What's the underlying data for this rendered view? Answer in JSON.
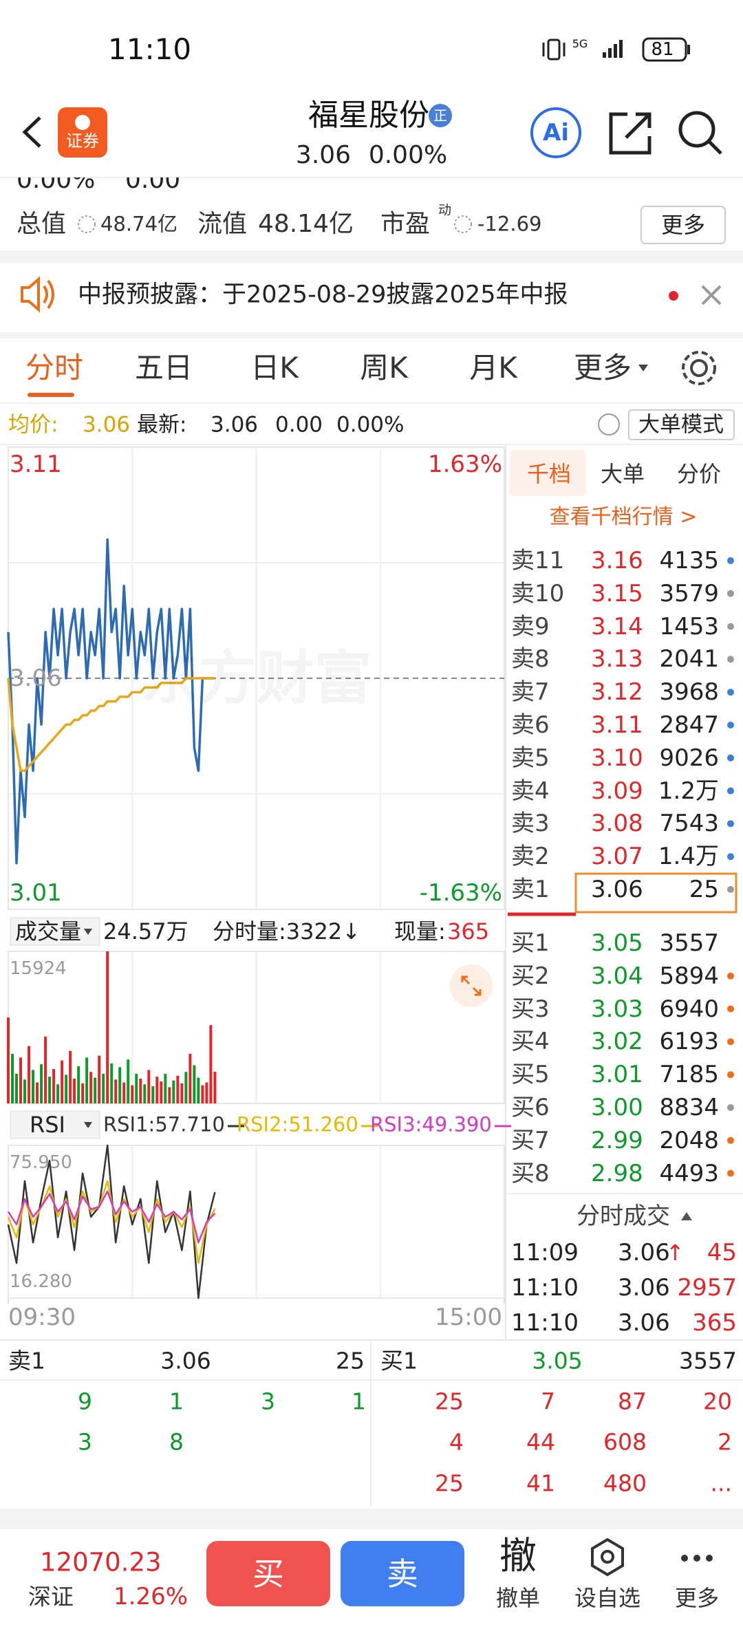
{
  "status_bar": {
    "time": "11:10",
    "network": "5G",
    "battery": "81"
  },
  "header": {
    "logo": "证券",
    "title": "福星股份",
    "badge": "正",
    "price": "3.06",
    "change": "0.00%",
    "ai": "Ai"
  },
  "quote": {
    "clipped": [
      "0.00%",
      "0.00"
    ],
    "total_value_label": "总值",
    "total_value": "48.74亿",
    "float_value_label": "流值",
    "float_value": "48.14亿",
    "pe_label": "市盈",
    "pe_sup": "动",
    "pe": "-12.69",
    "more": "更多"
  },
  "notice": "中报预披露：于2025-08-29披露2025年中报",
  "tabs": [
    "分时",
    "五日",
    "日K",
    "周K",
    "月K",
    "更多"
  ],
  "info": {
    "avg_label": "均价:",
    "avg": "3.06",
    "last_label": "最新:",
    "last": "3.06",
    "change": "0.00",
    "pct": "0.00%",
    "mode": "大单模式"
  },
  "chart_data": [
    {
      "type": "line",
      "watermark": "东方财富",
      "grid": true,
      "x": [
        0,
        2,
        4,
        6,
        8,
        10,
        12,
        14,
        16,
        18,
        20,
        22,
        24,
        26,
        28,
        30,
        32,
        34,
        36,
        38,
        40,
        42,
        44,
        46,
        48,
        50,
        52,
        54,
        56,
        58,
        60,
        62,
        64,
        66,
        68,
        70,
        72,
        74,
        76,
        78,
        80,
        82,
        84,
        86,
        88,
        90,
        92,
        94,
        96,
        98,
        100
      ],
      "series": [
        {
          "color": "#2d6cb4",
          "values": [
            3.07,
            3.05,
            3.02,
            3.04,
            3.03,
            3.05,
            3.04,
            3.06,
            3.05,
            3.07,
            3.06,
            3.075,
            3.065,
            3.075,
            3.06,
            3.07,
            3.075,
            3.065,
            3.075,
            3.06,
            3.07,
            3.065,
            3.075,
            3.06,
            3.09,
            3.07,
            3.075,
            3.06,
            3.08,
            3.065,
            3.075,
            3.06,
            3.07,
            3.065,
            3.075,
            3.06,
            3.07,
            3.075,
            3.06,
            3.075,
            3.06,
            3.065,
            3.075,
            3.06,
            3.075,
            3.045,
            3.04,
            3.06,
            3.06,
            3.06,
            3.06
          ]
        },
        {
          "color": "#e6a817",
          "values": [
            3.06,
            3.05,
            3.045,
            3.04,
            3.04,
            3.041,
            3.042,
            3.043,
            3.044,
            3.045,
            3.046,
            3.047,
            3.048,
            3.049,
            3.05,
            3.05,
            3.051,
            3.051,
            3.052,
            3.052,
            3.053,
            3.053,
            3.054,
            3.054,
            3.055,
            3.055,
            3.055,
            3.056,
            3.056,
            3.056,
            3.057,
            3.057,
            3.057,
            3.058,
            3.058,
            3.058,
            3.058,
            3.059,
            3.059,
            3.059,
            3.059,
            3.059,
            3.059,
            3.06,
            3.06,
            3.06,
            3.06,
            3.06,
            3.06,
            3.06,
            3.06
          ]
        }
      ],
      "xlim": [
        0,
        240
      ],
      "xticks": [
        {
          "value": 0,
          "label": "09:30"
        },
        {
          "value": 240,
          "label": "15:00"
        }
      ],
      "ylim": [
        3.01,
        3.11
      ],
      "yticks": [
        3.01,
        3.06,
        3.11
      ],
      "y2lim": [
        -1.63,
        1.63
      ],
      "y2ticks": [
        {
          "value": -1.63,
          "label": "-1.63%"
        },
        {
          "value": 1.63,
          "label": "1.63%"
        }
      ]
    },
    {
      "type": "bar",
      "title": "成交量",
      "total": "24.57万",
      "tick_volume": "分时量:3322↓",
      "current_label": "现量:",
      "current": "365",
      "up_color": "#e0262b",
      "down_color": "#0d9a2b",
      "x": [
        0,
        2,
        4,
        6,
        8,
        10,
        12,
        14,
        16,
        18,
        20,
        22,
        24,
        26,
        28,
        30,
        32,
        34,
        36,
        38,
        40,
        42,
        44,
        46,
        48,
        50,
        52,
        54,
        56,
        58,
        60,
        62,
        64,
        66,
        68,
        70,
        72,
        74,
        76,
        78,
        80,
        82,
        84,
        86,
        88,
        90,
        92,
        94,
        96,
        98,
        100
      ],
      "values": [
        9000,
        5200,
        3100,
        4800,
        2500,
        6000,
        3500,
        2200,
        4100,
        7000,
        2800,
        3600,
        2000,
        4500,
        3000,
        5500,
        2600,
        3900,
        2100,
        4800,
        3300,
        2700,
        5000,
        3100,
        15924,
        4200,
        2500,
        3800,
        2200,
        4600,
        1900,
        3100,
        2600,
        2000,
        3500,
        1800,
        2800,
        2300,
        3100,
        1700,
        2400,
        2900,
        2100,
        3300,
        5200,
        4000,
        2700,
        1900,
        2200,
        8200,
        3322
      ],
      "xlim": [
        0,
        240
      ],
      "ylim": [
        0,
        15924
      ],
      "yticks": [
        15924
      ]
    },
    {
      "type": "line",
      "title": "RSI",
      "x": [
        0,
        4,
        8,
        12,
        16,
        20,
        24,
        28,
        32,
        36,
        40,
        44,
        48,
        52,
        56,
        60,
        64,
        68,
        72,
        76,
        80,
        84,
        88,
        92,
        96,
        100
      ],
      "series": [
        {
          "name": "RSI1:57.710",
          "color": "#333333",
          "values": [
            45,
            30,
            62,
            38,
            55,
            70,
            40,
            58,
            35,
            65,
            48,
            52,
            75.95,
            38,
            60,
            45,
            55,
            30,
            62,
            42,
            50,
            35,
            58,
            16.28,
            45,
            57.71
          ]
        },
        {
          "name": "RSI2:51.260",
          "color": "#e6b800",
          "values": [
            48,
            40,
            55,
            45,
            52,
            60,
            48,
            55,
            44,
            58,
            50,
            52,
            62,
            46,
            55,
            48,
            52,
            42,
            55,
            46,
            50,
            44,
            52,
            30,
            45,
            51.26
          ]
        },
        {
          "name": "RSI3:49.390",
          "color": "#d13bc8",
          "values": [
            50,
            45,
            55,
            48,
            52,
            57,
            50,
            54,
            47,
            56,
            51,
            52,
            58,
            49,
            54,
            50,
            52,
            46,
            53,
            48,
            50,
            47,
            51,
            38,
            46,
            49.39
          ]
        }
      ],
      "xlim": [
        0,
        240
      ],
      "ylim": [
        16.28,
        75.95
      ],
      "yticks": [
        {
          "value": 16.28,
          "label": "16.280"
        },
        {
          "value": 75.95,
          "label": "75.950"
        }
      ]
    }
  ],
  "order_book": {
    "tabs": [
      "千档",
      "大单",
      "分价"
    ],
    "link": "查看千档行情 >",
    "asks": [
      {
        "label": "卖11",
        "price": "3.16",
        "volume": "4135",
        "dot": "#3d7fd9"
      },
      {
        "label": "卖10",
        "price": "3.15",
        "volume": "3579",
        "dot": "#9a9a9a"
      },
      {
        "label": "卖9",
        "price": "3.14",
        "volume": "1453",
        "dot": "#9a9a9a"
      },
      {
        "label": "卖8",
        "price": "3.13",
        "volume": "2041",
        "dot": "#9a9a9a"
      },
      {
        "label": "卖7",
        "price": "3.12",
        "volume": "3968",
        "dot": "#3d7fd9"
      },
      {
        "label": "卖6",
        "price": "3.11",
        "volume": "2847",
        "dot": "#3d7fd9"
      },
      {
        "label": "卖5",
        "price": "3.10",
        "volume": "9026",
        "dot": "#3d7fd9"
      },
      {
        "label": "卖4",
        "price": "3.09",
        "volume": "1.2万",
        "dot": "#3d7fd9"
      },
      {
        "label": "卖3",
        "price": "3.08",
        "volume": "7543",
        "dot": "#3d7fd9"
      },
      {
        "label": "卖2",
        "price": "3.07",
        "volume": "1.4万",
        "dot": "#3d7fd9"
      },
      {
        "label": "卖1",
        "price": "3.06",
        "volume": "25",
        "dot": "#9a9a9a"
      }
    ],
    "bids": [
      {
        "label": "买1",
        "price": "3.05",
        "volume": "3557"
      },
      {
        "label": "买2",
        "price": "3.04",
        "volume": "5894",
        "dot": "#ef6c1a"
      },
      {
        "label": "买3",
        "price": "3.03",
        "volume": "6940",
        "dot": "#ef6c1a"
      },
      {
        "label": "买4",
        "price": "3.02",
        "volume": "6193",
        "dot": "#ef6c1a"
      },
      {
        "label": "买5",
        "price": "3.01",
        "volume": "7185",
        "dot": "#ef6c1a"
      },
      {
        "label": "买6",
        "price": "3.00",
        "volume": "8834",
        "dot": "#9a9a9a"
      },
      {
        "label": "买7",
        "price": "2.99",
        "volume": "2048",
        "dot": "#ef6c1a"
      },
      {
        "label": "买8",
        "price": "2.98",
        "volume": "4493",
        "dot": "#ef6c1a"
      }
    ]
  },
  "trades": {
    "title": "分时成交",
    "rows": [
      {
        "time": "11:09",
        "price": "3.06",
        "arrow": "↑",
        "volume": "45"
      },
      {
        "time": "11:10",
        "price": "3.06",
        "volume": "2957"
      },
      {
        "time": "11:10",
        "price": "3.06",
        "volume": "365"
      }
    ]
  },
  "depth": {
    "sell": {
      "label": "卖1",
      "price": "3.06",
      "volume": "25",
      "rows": [
        [
          "9",
          "1",
          "3",
          "1"
        ],
        [
          "3",
          "8"
        ]
      ]
    },
    "buy": {
      "label": "买1",
      "price": "3.05",
      "volume": "3557",
      "rows": [
        [
          "25",
          "7",
          "87",
          "20"
        ],
        [
          "4",
          "44",
          "608",
          "2"
        ],
        [
          "25",
          "41",
          "480",
          "..."
        ]
      ]
    }
  },
  "bottom_bar": {
    "index": "12070.23",
    "market": "深证",
    "index_change": "1.26%",
    "buy": "买",
    "sell": "卖",
    "cancel_icon": "撤",
    "cancel": "撤单",
    "watchlist": "设自选",
    "more": "更多"
  }
}
